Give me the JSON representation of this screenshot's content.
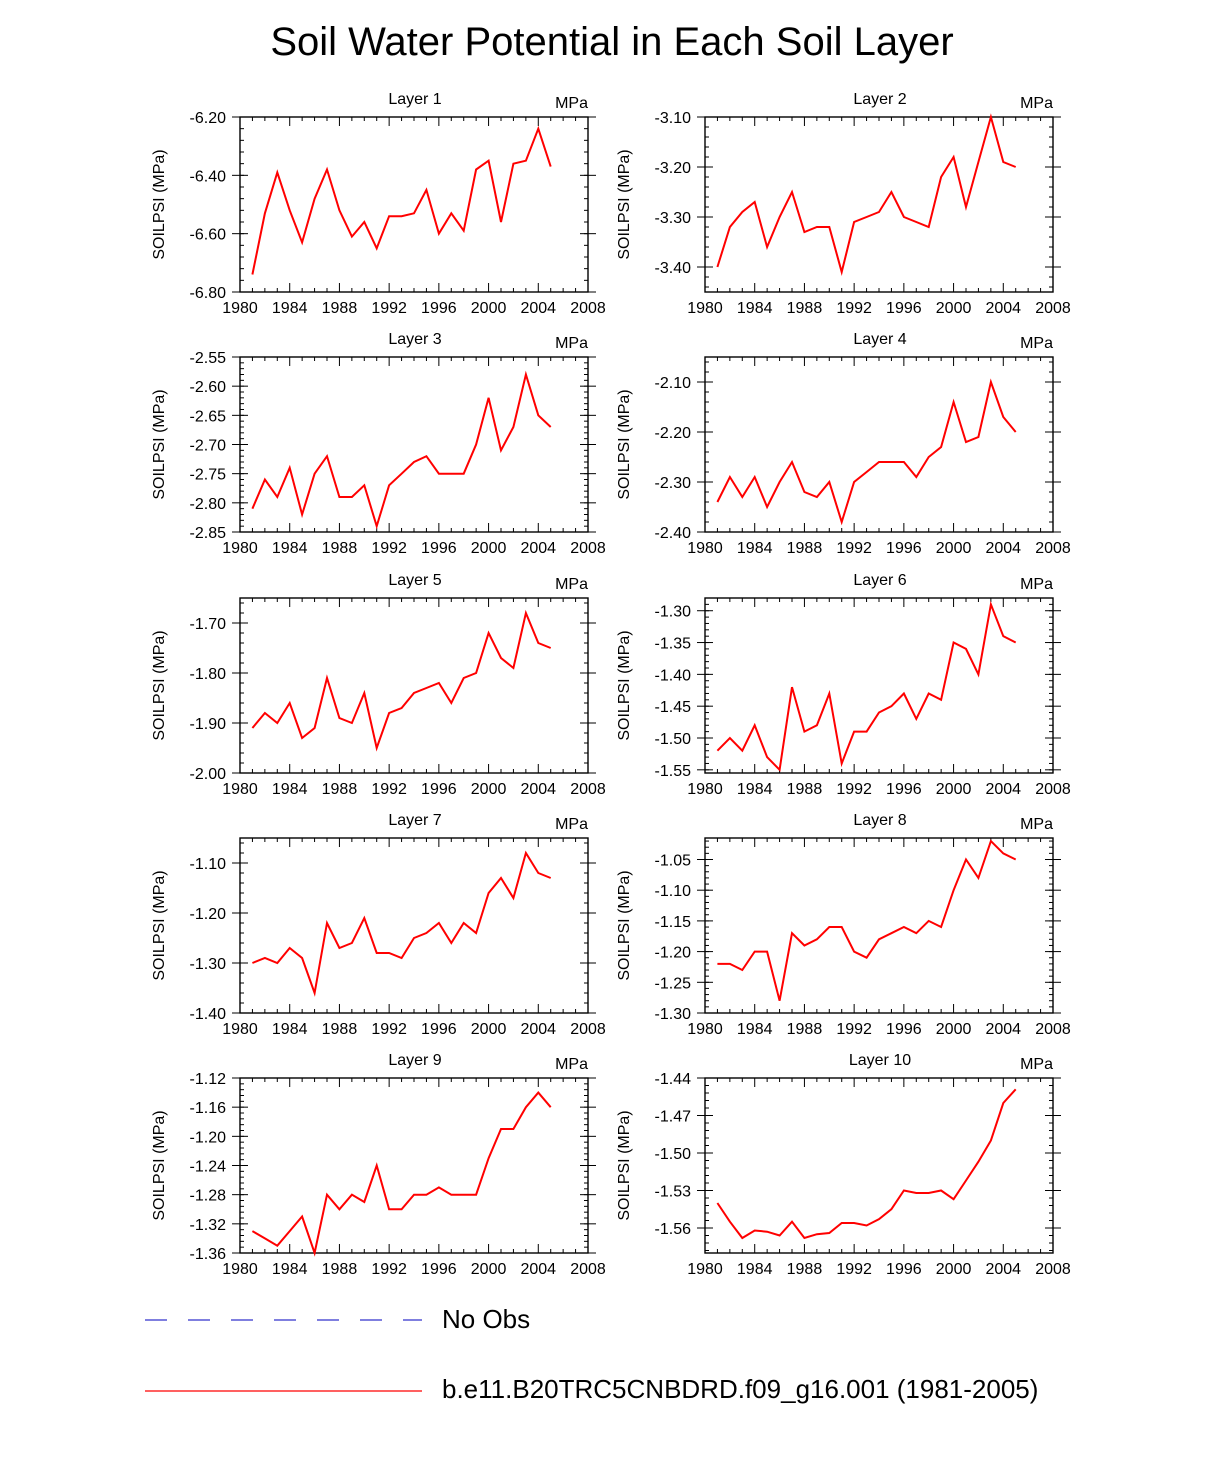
{
  "title": "Soil Water Potential in Each Soil Layer",
  "colors": {
    "model": "#ff0000",
    "obs": "#3333cc",
    "axis": "#000000"
  },
  "legend": [
    {
      "label": "No Obs",
      "style": "dashed",
      "color": "#3333cc"
    },
    {
      "label": "b.e11.B20TRC5CNBDRD.f09_g16.001 (1981-2005)",
      "style": "solid",
      "color": "#ff0000"
    }
  ],
  "chart_data": [
    {
      "type": "line",
      "title": "Layer 1",
      "units": "MPa",
      "ylabel": "SOILPSI  (MPa)",
      "xlabel": "",
      "xlim": [
        1980,
        2008
      ],
      "xticks": [
        "1980",
        "1984",
        "1988",
        "1992",
        "1996",
        "2000",
        "2004",
        "2008"
      ],
      "ylim": [
        -6.8,
        -6.2
      ],
      "yticks": [
        "-6.20",
        "-6.40",
        "-6.60",
        "-6.80"
      ],
      "series": [
        {
          "name": "b.e11.B20TRC5CNBDRD.f09_g16.001 (1981-2005)",
          "color": "#ff0000",
          "x": [
            1981,
            1982,
            1983,
            1984,
            1985,
            1986,
            1987,
            1988,
            1989,
            1990,
            1991,
            1992,
            1993,
            1994,
            1995,
            1996,
            1997,
            1998,
            1999,
            2000,
            2001,
            2002,
            2003,
            2004,
            2005
          ],
          "values": [
            -6.74,
            -6.53,
            -6.39,
            -6.52,
            -6.63,
            -6.48,
            -6.38,
            -6.52,
            -6.61,
            -6.56,
            -6.65,
            -6.54,
            -6.54,
            -6.53,
            -6.45,
            -6.6,
            -6.53,
            -6.59,
            -6.38,
            -6.35,
            -6.56,
            -6.36,
            -6.35,
            -6.24,
            -6.37
          ]
        }
      ]
    },
    {
      "type": "line",
      "title": "Layer 2",
      "units": "MPa",
      "ylabel": "SOILPSI  (MPa)",
      "xlabel": "",
      "xlim": [
        1980,
        2008
      ],
      "xticks": [
        "1980",
        "1984",
        "1988",
        "1992",
        "1996",
        "2000",
        "2004",
        "2008"
      ],
      "ylim": [
        -3.45,
        -3.1
      ],
      "yticks": [
        "-3.10",
        "-3.20",
        "-3.30",
        "-3.40"
      ],
      "series": [
        {
          "name": "b.e11.B20TRC5CNBDRD.f09_g16.001 (1981-2005)",
          "color": "#ff0000",
          "x": [
            1981,
            1982,
            1983,
            1984,
            1985,
            1986,
            1987,
            1988,
            1989,
            1990,
            1991,
            1992,
            1993,
            1994,
            1995,
            1996,
            1997,
            1998,
            1999,
            2000,
            2001,
            2002,
            2003,
            2004,
            2005
          ],
          "values": [
            -3.4,
            -3.32,
            -3.29,
            -3.27,
            -3.36,
            -3.3,
            -3.25,
            -3.33,
            -3.32,
            -3.32,
            -3.41,
            -3.31,
            -3.3,
            -3.29,
            -3.25,
            -3.3,
            -3.31,
            -3.32,
            -3.22,
            -3.18,
            -3.28,
            -3.19,
            -3.1,
            -3.19,
            -3.2
          ]
        }
      ]
    },
    {
      "type": "line",
      "title": "Layer 3",
      "units": "MPa",
      "ylabel": "SOILPSI  (MPa)",
      "xlabel": "",
      "xlim": [
        1980,
        2008
      ],
      "xticks": [
        "1980",
        "1984",
        "1988",
        "1992",
        "1996",
        "2000",
        "2004",
        "2008"
      ],
      "ylim": [
        -2.85,
        -2.55
      ],
      "yticks": [
        "-2.55",
        "-2.60",
        "-2.65",
        "-2.70",
        "-2.75",
        "-2.80",
        "-2.85"
      ],
      "series": [
        {
          "name": "b.e11.B20TRC5CNBDRD.f09_g16.001 (1981-2005)",
          "color": "#ff0000",
          "x": [
            1981,
            1982,
            1983,
            1984,
            1985,
            1986,
            1987,
            1988,
            1989,
            1990,
            1991,
            1992,
            1993,
            1994,
            1995,
            1996,
            1997,
            1998,
            1999,
            2000,
            2001,
            2002,
            2003,
            2004,
            2005
          ],
          "values": [
            -2.81,
            -2.76,
            -2.79,
            -2.74,
            -2.82,
            -2.75,
            -2.72,
            -2.79,
            -2.79,
            -2.77,
            -2.84,
            -2.77,
            -2.75,
            -2.73,
            -2.72,
            -2.75,
            -2.75,
            -2.75,
            -2.7,
            -2.62,
            -2.71,
            -2.67,
            -2.58,
            -2.65,
            -2.67
          ]
        }
      ]
    },
    {
      "type": "line",
      "title": "Layer 4",
      "units": "MPa",
      "ylabel": "SOILPSI  (MPa)",
      "xlabel": "",
      "xlim": [
        1980,
        2008
      ],
      "xticks": [
        "1980",
        "1984",
        "1988",
        "1992",
        "1996",
        "2000",
        "2004",
        "2008"
      ],
      "ylim": [
        -2.4,
        -2.05
      ],
      "yticks": [
        "-2.10",
        "-2.20",
        "-2.30",
        "-2.40"
      ],
      "series": [
        {
          "name": "b.e11.B20TRC5CNBDRD.f09_g16.001 (1981-2005)",
          "color": "#ff0000",
          "x": [
            1981,
            1982,
            1983,
            1984,
            1985,
            1986,
            1987,
            1988,
            1989,
            1990,
            1991,
            1992,
            1993,
            1994,
            1995,
            1996,
            1997,
            1998,
            1999,
            2000,
            2001,
            2002,
            2003,
            2004,
            2005
          ],
          "values": [
            -2.34,
            -2.29,
            -2.33,
            -2.29,
            -2.35,
            -2.3,
            -2.26,
            -2.32,
            -2.33,
            -2.3,
            -2.38,
            -2.3,
            -2.28,
            -2.26,
            -2.26,
            -2.26,
            -2.29,
            -2.25,
            -2.23,
            -2.14,
            -2.22,
            -2.21,
            -2.1,
            -2.17,
            -2.2
          ]
        }
      ]
    },
    {
      "type": "line",
      "title": "Layer 5",
      "units": "MPa",
      "ylabel": "SOILPSI  (MPa)",
      "xlabel": "",
      "xlim": [
        1980,
        2008
      ],
      "xticks": [
        "1980",
        "1984",
        "1988",
        "1992",
        "1996",
        "2000",
        "2004",
        "2008"
      ],
      "ylim": [
        -2.0,
        -1.65
      ],
      "yticks": [
        "-1.70",
        "-1.80",
        "-1.90",
        "-2.00"
      ],
      "series": [
        {
          "name": "b.e11.B20TRC5CNBDRD.f09_g16.001 (1981-2005)",
          "color": "#ff0000",
          "x": [
            1981,
            1982,
            1983,
            1984,
            1985,
            1986,
            1987,
            1988,
            1989,
            1990,
            1991,
            1992,
            1993,
            1994,
            1995,
            1996,
            1997,
            1998,
            1999,
            2000,
            2001,
            2002,
            2003,
            2004,
            2005
          ],
          "values": [
            -1.91,
            -1.88,
            -1.9,
            -1.86,
            -1.93,
            -1.91,
            -1.81,
            -1.89,
            -1.9,
            -1.84,
            -1.95,
            -1.88,
            -1.87,
            -1.84,
            -1.83,
            -1.82,
            -1.86,
            -1.81,
            -1.8,
            -1.72,
            -1.77,
            -1.79,
            -1.68,
            -1.74,
            -1.75
          ]
        }
      ]
    },
    {
      "type": "line",
      "title": "Layer 6",
      "units": "MPa",
      "ylabel": "SOILPSI  (MPa)",
      "xlabel": "",
      "xlim": [
        1980,
        2008
      ],
      "xticks": [
        "1980",
        "1984",
        "1988",
        "1992",
        "1996",
        "2000",
        "2004",
        "2008"
      ],
      "ylim": [
        -1.555,
        -1.28
      ],
      "yticks": [
        "-1.30",
        "-1.35",
        "-1.40",
        "-1.45",
        "-1.50",
        "-1.55"
      ],
      "series": [
        {
          "name": "b.e11.B20TRC5CNBDRD.f09_g16.001 (1981-2005)",
          "color": "#ff0000",
          "x": [
            1981,
            1982,
            1983,
            1984,
            1985,
            1986,
            1987,
            1988,
            1989,
            1990,
            1991,
            1992,
            1993,
            1994,
            1995,
            1996,
            1997,
            1998,
            1999,
            2000,
            2001,
            2002,
            2003,
            2004,
            2005
          ],
          "values": [
            -1.52,
            -1.5,
            -1.52,
            -1.48,
            -1.53,
            -1.55,
            -1.42,
            -1.49,
            -1.48,
            -1.43,
            -1.54,
            -1.49,
            -1.49,
            -1.46,
            -1.45,
            -1.43,
            -1.47,
            -1.43,
            -1.44,
            -1.35,
            -1.36,
            -1.4,
            -1.29,
            -1.34,
            -1.35
          ]
        }
      ]
    },
    {
      "type": "line",
      "title": "Layer 7",
      "units": "MPa",
      "ylabel": "SOILPSI  (MPa)",
      "xlabel": "",
      "xlim": [
        1980,
        2008
      ],
      "xticks": [
        "1980",
        "1984",
        "1988",
        "1992",
        "1996",
        "2000",
        "2004",
        "2008"
      ],
      "ylim": [
        -1.4,
        -1.05
      ],
      "yticks": [
        "-1.10",
        "-1.20",
        "-1.30",
        "-1.40"
      ],
      "series": [
        {
          "name": "b.e11.B20TRC5CNBDRD.f09_g16.001 (1981-2005)",
          "color": "#ff0000",
          "x": [
            1981,
            1982,
            1983,
            1984,
            1985,
            1986,
            1987,
            1988,
            1989,
            1990,
            1991,
            1992,
            1993,
            1994,
            1995,
            1996,
            1997,
            1998,
            1999,
            2000,
            2001,
            2002,
            2003,
            2004,
            2005
          ],
          "values": [
            -1.3,
            -1.29,
            -1.3,
            -1.27,
            -1.29,
            -1.36,
            -1.22,
            -1.27,
            -1.26,
            -1.21,
            -1.28,
            -1.28,
            -1.29,
            -1.25,
            -1.24,
            -1.22,
            -1.26,
            -1.22,
            -1.24,
            -1.16,
            -1.13,
            -1.17,
            -1.08,
            -1.12,
            -1.13
          ]
        }
      ]
    },
    {
      "type": "line",
      "title": "Layer 8",
      "units": "MPa",
      "ylabel": "SOILPSI  (MPa)",
      "xlabel": "",
      "xlim": [
        1980,
        2008
      ],
      "xticks": [
        "1980",
        "1984",
        "1988",
        "1992",
        "1996",
        "2000",
        "2004",
        "2008"
      ],
      "ylim": [
        -1.3,
        -1.015
      ],
      "yticks": [
        "-1.05",
        "-1.10",
        "-1.15",
        "-1.20",
        "-1.25",
        "-1.30"
      ],
      "series": [
        {
          "name": "b.e11.B20TRC5CNBDRD.f09_g16.001 (1981-2005)",
          "color": "#ff0000",
          "x": [
            1981,
            1982,
            1983,
            1984,
            1985,
            1986,
            1987,
            1988,
            1989,
            1990,
            1991,
            1992,
            1993,
            1994,
            1995,
            1996,
            1997,
            1998,
            1999,
            2000,
            2001,
            2002,
            2003,
            2004,
            2005
          ],
          "values": [
            -1.22,
            -1.22,
            -1.23,
            -1.2,
            -1.2,
            -1.28,
            -1.17,
            -1.19,
            -1.18,
            -1.16,
            -1.16,
            -1.2,
            -1.21,
            -1.18,
            -1.17,
            -1.16,
            -1.17,
            -1.15,
            -1.16,
            -1.1,
            -1.05,
            -1.08,
            -1.02,
            -1.04,
            -1.05
          ]
        }
      ]
    },
    {
      "type": "line",
      "title": "Layer 9",
      "units": "MPa",
      "ylabel": "SOILPSI  (MPa)",
      "xlabel": "",
      "xlim": [
        1980,
        2008
      ],
      "xticks": [
        "1980",
        "1984",
        "1988",
        "1992",
        "1996",
        "2000",
        "2004",
        "2008"
      ],
      "ylim": [
        -1.36,
        -1.12
      ],
      "yticks": [
        "-1.12",
        "-1.16",
        "-1.20",
        "-1.24",
        "-1.28",
        "-1.32",
        "-1.36"
      ],
      "series": [
        {
          "name": "b.e11.B20TRC5CNBDRD.f09_g16.001 (1981-2005)",
          "color": "#ff0000",
          "x": [
            1981,
            1982,
            1983,
            1984,
            1985,
            1986,
            1987,
            1988,
            1989,
            1990,
            1991,
            1992,
            1993,
            1994,
            1995,
            1996,
            1997,
            1998,
            1999,
            2000,
            2001,
            2002,
            2003,
            2004,
            2005
          ],
          "values": [
            -1.33,
            -1.34,
            -1.35,
            -1.33,
            -1.31,
            -1.36,
            -1.28,
            -1.3,
            -1.28,
            -1.29,
            -1.24,
            -1.3,
            -1.3,
            -1.28,
            -1.28,
            -1.27,
            -1.28,
            -1.28,
            -1.28,
            -1.23,
            -1.19,
            -1.19,
            -1.16,
            -1.14,
            -1.16
          ]
        }
      ]
    },
    {
      "type": "line",
      "title": "Layer 10",
      "units": "MPa",
      "ylabel": "SOILPSI  (MPa)",
      "xlabel": "",
      "xlim": [
        1980,
        2008
      ],
      "xticks": [
        "1980",
        "1984",
        "1988",
        "1992",
        "1996",
        "2000",
        "2004",
        "2008"
      ],
      "ylim": [
        -1.58,
        -1.44
      ],
      "yticks": [
        "-1.44",
        "-1.47",
        "-1.50",
        "-1.53",
        "-1.56"
      ],
      "series": [
        {
          "name": "b.e11.B20TRC5CNBDRD.f09_g16.001 (1981-2005)",
          "color": "#ff0000",
          "x": [
            1981,
            1982,
            1983,
            1984,
            1985,
            1986,
            1987,
            1988,
            1989,
            1990,
            1991,
            1992,
            1993,
            1994,
            1995,
            1996,
            1997,
            1998,
            1999,
            2000,
            2001,
            2002,
            2003,
            2004,
            2005
          ],
          "values": [
            -1.54,
            -1.555,
            -1.568,
            -1.562,
            -1.563,
            -1.566,
            -1.555,
            -1.568,
            -1.565,
            -1.564,
            -1.556,
            -1.556,
            -1.558,
            -1.553,
            -1.545,
            -1.53,
            -1.532,
            -1.532,
            -1.53,
            -1.537,
            -1.522,
            -1.507,
            -1.49,
            -1.46,
            -1.449
          ]
        }
      ]
    }
  ]
}
